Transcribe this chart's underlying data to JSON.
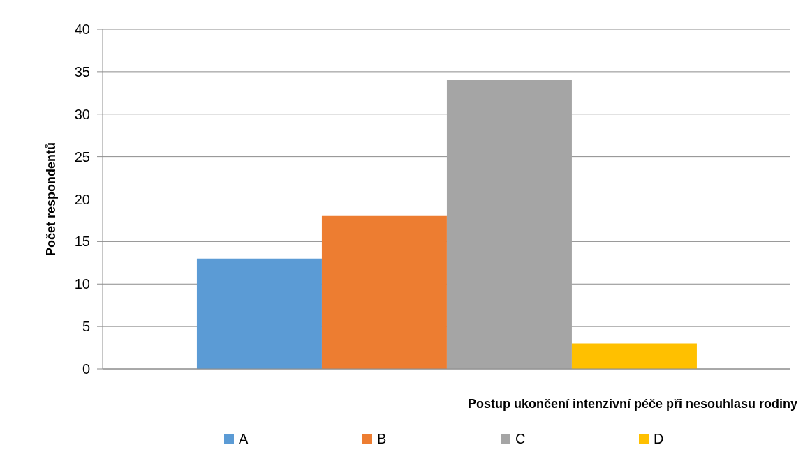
{
  "chart_data": {
    "type": "bar",
    "xlabel": "Postup ukončení intenzivní péče při nesouhlasu rodiny",
    "ylabel": "Počet respondentů",
    "categories": [
      null
    ],
    "series": [
      {
        "name": "A",
        "color": "#5b9bd5",
        "values": [
          13
        ]
      },
      {
        "name": "B",
        "color": "#ed7d31",
        "values": [
          18
        ]
      },
      {
        "name": "C",
        "color": "#a5a5a5",
        "values": [
          34
        ]
      },
      {
        "name": "D",
        "color": "#ffc000",
        "values": [
          3
        ]
      }
    ],
    "ylim": [
      0,
      40
    ],
    "yticks": [
      0,
      5,
      10,
      15,
      20,
      25,
      30,
      35,
      40
    ],
    "grid": "y",
    "legend": "bottom"
  }
}
